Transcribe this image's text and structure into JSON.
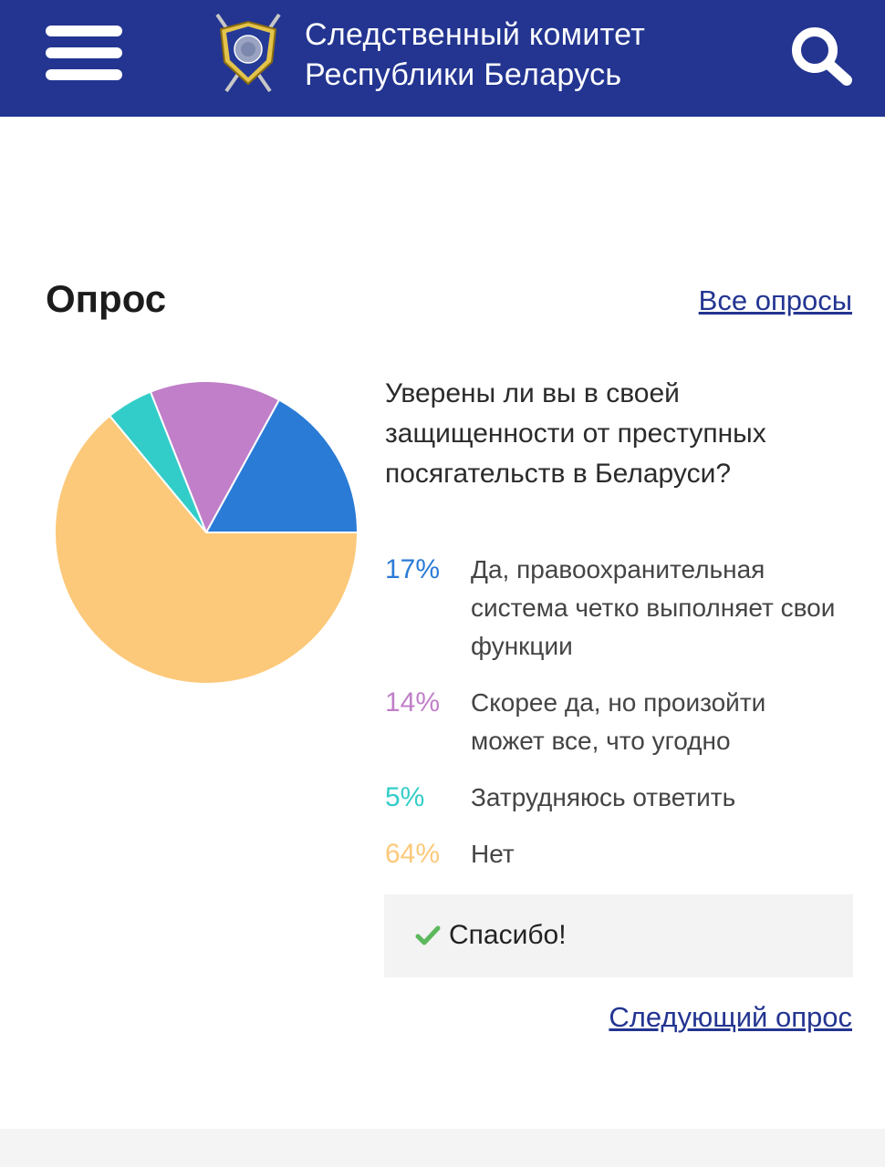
{
  "header": {
    "title_line1": "Следственный комитет",
    "title_line2": "Республики Беларусь",
    "background_color": "#233591"
  },
  "poll": {
    "section_title": "Опрос",
    "all_polls_link": "Все опросы",
    "question": "Уверены ли вы в своей защищенности от преступных посягательств в Беларуси?",
    "answers": [
      {
        "percent": "17%",
        "text": "Да, правоохранительная система четко выполняет свои функции",
        "color": "#2a7bd6"
      },
      {
        "percent": "14%",
        "text": "Скорее да, но произойти может все, что угодно",
        "color": "#c07fc8"
      },
      {
        "percent": "5%",
        "text": "Затрудняюсь ответить",
        "color": "#33cdc9"
      },
      {
        "percent": "64%",
        "text": "Нет",
        "color": "#fcc97a"
      }
    ],
    "thanks_text": "Спасибо!",
    "next_poll_link": "Следующий опрос"
  },
  "chart_data": {
    "type": "pie",
    "labels": [
      "Да, правоохранительная система четко выполняет свои функции",
      "Скорее да, но произойти может все, что угодно",
      "Затрудняюсь ответить",
      "Нет"
    ],
    "values": [
      17,
      14,
      5,
      64
    ],
    "colors": [
      "#2a7bd6",
      "#c07fc8",
      "#33cdc9",
      "#fcc97a"
    ]
  }
}
